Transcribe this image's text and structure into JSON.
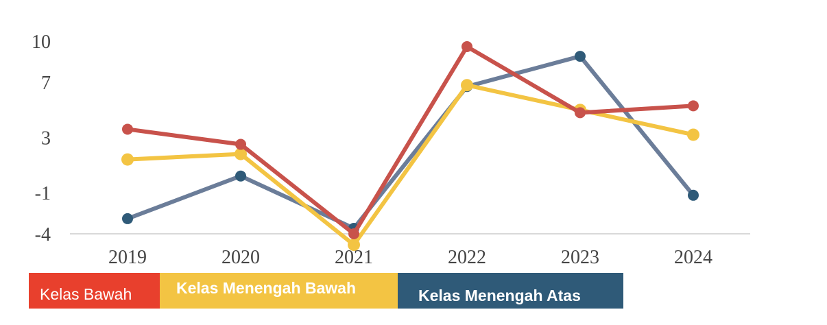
{
  "chart_data": {
    "type": "line",
    "categories": [
      "2019",
      "2020",
      "2021",
      "2022",
      "2023",
      "2024"
    ],
    "yticks": [
      "10",
      "7",
      "3",
      "-1",
      "-4"
    ],
    "ylim": [
      -4,
      10
    ],
    "grid": false,
    "legend_position": "bottom-left",
    "series": [
      {
        "name": "Kelas Menengah Atas",
        "line_color": "#6b7d99",
        "marker_color": "#2f5a78",
        "values": [
          -2.9,
          0.2,
          -3.6,
          6.7,
          8.9,
          -1.2
        ]
      },
      {
        "name": "Kelas Menengah Bawah",
        "line_color": "#f3c443",
        "marker_color": "#f3c443",
        "values": [
          1.4,
          1.8,
          -4.8,
          6.8,
          5.0,
          3.2
        ]
      },
      {
        "name": "Kelas Bawah",
        "line_color": "#c8524b",
        "marker_color": "#c8524b",
        "values": [
          3.6,
          2.5,
          -4.0,
          9.6,
          4.8,
          5.3
        ]
      }
    ]
  },
  "legend": [
    {
      "label": "Kelas Bawah",
      "color": "#e8402d"
    },
    {
      "label": "Kelas Menengah Bawah",
      "color": "#f3c443"
    },
    {
      "label": "Kelas Menengah Atas",
      "color": "#2f5a78"
    }
  ]
}
